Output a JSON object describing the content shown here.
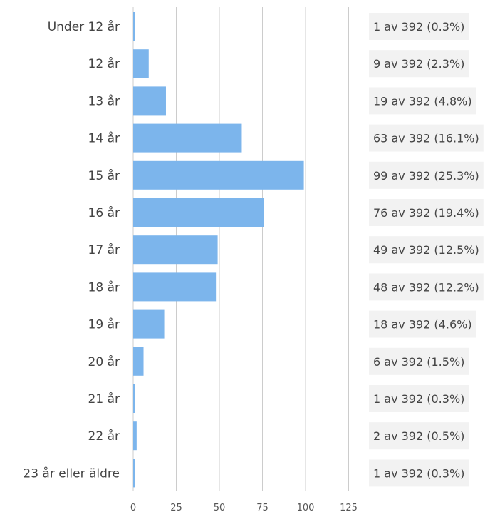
{
  "chart_data": {
    "type": "bar",
    "orientation": "horizontal",
    "categories": [
      "Under 12 år",
      "12 år",
      "13 år",
      "14 år",
      "15 år",
      "16 år",
      "17 år",
      "18 år",
      "19 år",
      "20 år",
      "21 år",
      "22 år",
      "23 år eller äldre"
    ],
    "values": [
      1,
      9,
      19,
      63,
      99,
      76,
      49,
      48,
      18,
      6,
      1,
      2,
      1
    ],
    "data_labels": [
      "1 av 392 (0.3%)",
      "9 av 392 (2.3%)",
      "19 av 392 (4.8%)",
      "63 av 392 (16.1%)",
      "99 av 392 (25.3%)",
      "76 av 392 (19.4%)",
      "49 av 392 (12.5%)",
      "48 av 392 (12.2%)",
      "18 av 392 (4.6%)",
      "6 av 392 (1.5%)",
      "1 av 392 (0.3%)",
      "2 av 392 (0.5%)",
      "1 av 392 (0.3%)"
    ],
    "xlim": [
      0,
      125
    ],
    "xticks": [
      0,
      25,
      50,
      75,
      100,
      125
    ],
    "grid": true,
    "bar_color": "#7cb5ec",
    "title": "",
    "xlabel": "",
    "ylabel": ""
  }
}
